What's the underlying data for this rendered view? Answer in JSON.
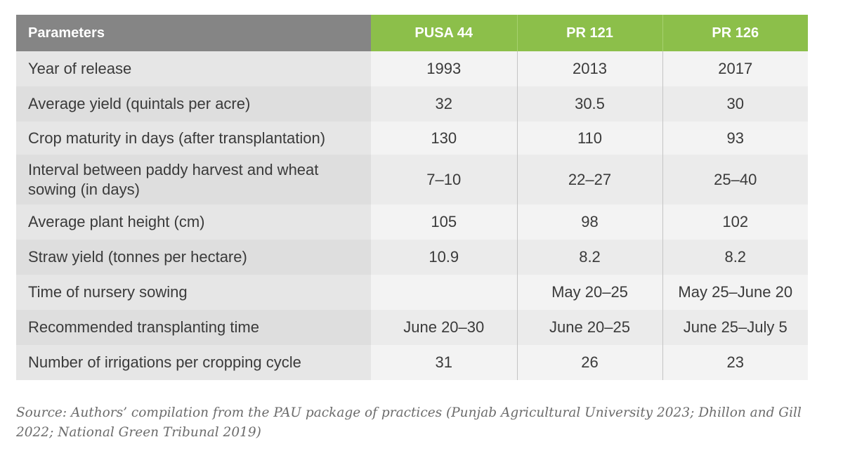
{
  "table": {
    "header": {
      "parameter": "Parameters",
      "varieties": [
        "PUSA 44",
        "PR 121",
        "PR 126"
      ]
    },
    "rows": [
      {
        "parameter": "Year of release",
        "values": [
          "1993",
          "2013",
          "2017"
        ]
      },
      {
        "parameter": "Average yield (quintals per acre)",
        "values": [
          "32",
          "30.5",
          "30"
        ]
      },
      {
        "parameter": "Crop maturity in days (after transplantation)",
        "values": [
          "130",
          "110",
          "93"
        ]
      },
      {
        "parameter": "Interval between paddy harvest and wheat sowing (in days)",
        "values": [
          "7–10",
          "22–27",
          "25–40"
        ]
      },
      {
        "parameter": "Average plant height (cm)",
        "values": [
          "105",
          "98",
          "102"
        ]
      },
      {
        "parameter": "Straw yield (tonnes per hectare)",
        "values": [
          "10.9",
          "8.2",
          "8.2"
        ]
      },
      {
        "parameter": "Time of nursery sowing",
        "values": [
          "",
          "May 20–25",
          "May 25–June 20"
        ]
      },
      {
        "parameter": "Recommended transplanting time",
        "values": [
          "June 20–30",
          "June 20–25",
          "June 25–July 5"
        ]
      },
      {
        "parameter": "Number of irrigations per cropping cycle",
        "values": [
          "31",
          "26",
          "23"
        ]
      }
    ]
  },
  "source": "Source: Authors’ compilation from the PAU package of practices (Punjab Agricultural University 2023; Dhillon and Gill 2022; National Green Tribunal 2019)"
}
